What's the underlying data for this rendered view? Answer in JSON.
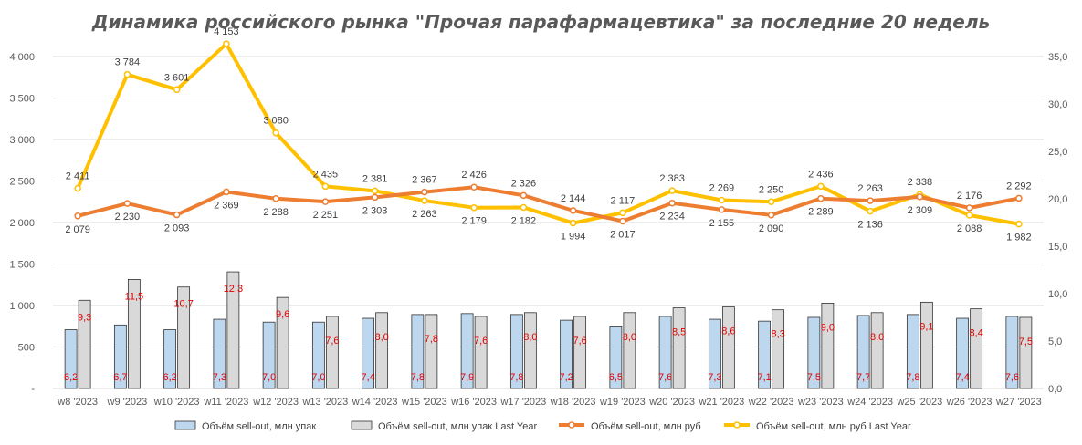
{
  "chart_data": {
    "type": "bar+line",
    "title": "Динамика российского рынка \"Прочая парафармацевтика\" за последние 20 недель",
    "categories": [
      "w8 '2023",
      "w9 '2023",
      "w10 '2023",
      "w11 '2023",
      "w12 '2023",
      "w13 '2023",
      "w14 '2023",
      "w15 '2023",
      "w16 '2023",
      "w17 '2023",
      "w18 '2023",
      "w19 '2023",
      "w20 '2023",
      "w21 '2023",
      "w22 '2023",
      "w23 '2023",
      "w24 '2023",
      "w25 '2023",
      "w26 '2023",
      "w27 '2023"
    ],
    "left_axis": {
      "min": 0,
      "max": 4000,
      "step": 500,
      "tick_labels": [
        "-",
        "500",
        "1 000",
        "1 500",
        "2 000",
        "2 500",
        "3 000",
        "3 500",
        "4 000"
      ]
    },
    "right_axis": {
      "min": 0,
      "max": 35,
      "step": 5,
      "tick_labels": [
        "0,0",
        "5,0",
        "10,0",
        "15,0",
        "20,0",
        "25,0",
        "30,0",
        "35,0"
      ]
    },
    "series": [
      {
        "name": "Объём sell-out, млн упак",
        "type": "bar",
        "axis": "right",
        "color": "#bdd7ee",
        "values": [
          6.2,
          6.7,
          6.2,
          7.3,
          7.0,
          7.0,
          7.4,
          7.8,
          7.9,
          7.8,
          7.2,
          6.5,
          7.6,
          7.3,
          7.1,
          7.5,
          7.7,
          7.8,
          7.4,
          7.6
        ],
        "labels": [
          "6,2",
          "6,7",
          "6,2",
          "7,3",
          "7,0",
          "7,0",
          "7,4",
          "7,8",
          "7,9",
          "7,8",
          "7,2",
          "6,5",
          "7,6",
          "7,3",
          "7,1",
          "7,5",
          "7,7",
          "7,8",
          "7,4",
          "7,6"
        ]
      },
      {
        "name": "Объём sell-out, млн упак Last Year",
        "type": "bar",
        "axis": "right",
        "color": "#d9d9d9",
        "values": [
          9.3,
          11.5,
          10.7,
          12.3,
          9.6,
          7.6,
          8.0,
          7.8,
          7.6,
          8.0,
          7.6,
          8.0,
          8.5,
          8.6,
          8.3,
          9.0,
          8.0,
          9.1,
          8.4,
          7.5
        ],
        "labels": [
          "9,3",
          "11,5",
          "10,7",
          "12,3",
          "9,6",
          "7,6",
          "8,0",
          "7,8",
          "7,6",
          "8,0",
          "7,6",
          "8,0",
          "8,5",
          "8,6",
          "8,3",
          "9,0",
          "8,0",
          "9,1",
          "8,4",
          "7,5"
        ]
      },
      {
        "name": "Объём sell-out, млн руб",
        "type": "line",
        "axis": "left",
        "color": "#ed7d31",
        "values": [
          2079,
          2230,
          2093,
          2369,
          2288,
          2251,
          2303,
          2367,
          2426,
          2326,
          2144,
          2017,
          2234,
          2155,
          2090,
          2289,
          2263,
          2309,
          2176,
          2292
        ],
        "labels": [
          "2 079",
          "2 230",
          "2 093",
          "2 369",
          "2 288",
          "2 251",
          "2 303",
          "2 367",
          "2 426",
          "2 326",
          "2 144",
          "2 017",
          "2 234",
          "2 155",
          "2 090",
          "2 289",
          "2 263",
          "2 309",
          "2 176",
          "2 292"
        ]
      },
      {
        "name": "Объём sell-out, млн руб Last Year",
        "type": "line",
        "axis": "left",
        "color": "#ffc000",
        "values": [
          2411,
          3784,
          3601,
          4153,
          3080,
          2435,
          2381,
          2263,
          2179,
          2182,
          1994,
          2117,
          2383,
          2269,
          2250,
          2436,
          2136,
          2338,
          2088,
          1982
        ],
        "labels": [
          "2 411",
          "3 784",
          "3 601",
          "4 153",
          "3 080",
          "2 435",
          "2 381",
          "2 263",
          "2 179",
          "2 182",
          "1 994",
          "2 117",
          "2 383",
          "2 269",
          "2 250",
          "2 436",
          "2 136",
          "2 338",
          "2 088",
          "1 982"
        ]
      }
    ],
    "legend_position": "bottom"
  }
}
